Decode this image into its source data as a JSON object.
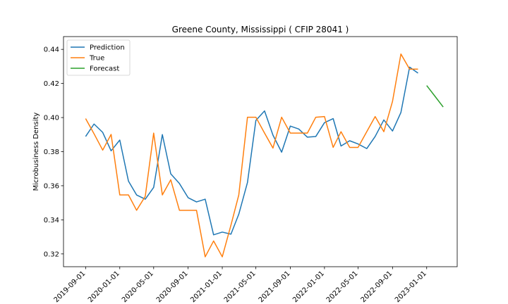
{
  "chart_data": {
    "type": "line",
    "title": "Greene County, Mississippi ( CFIP 28041 )",
    "xlabel": "",
    "ylabel": "Microbusiness Density",
    "ylim": [
      0.3125,
      0.4475
    ],
    "xlim": [
      "2019-06-14",
      "2023-04-20"
    ],
    "grid": false,
    "legend_position": "top-left",
    "yticks": [
      0.32,
      0.34,
      0.36,
      0.38,
      0.4,
      0.42,
      0.44
    ],
    "ytick_labels": [
      "0.32",
      "0.34",
      "0.36",
      "0.38",
      "0.40",
      "0.42",
      "0.44"
    ],
    "xticks": [
      "2019-09-01",
      "2020-01-01",
      "2020-05-01",
      "2020-09-01",
      "2021-01-01",
      "2021-05-01",
      "2021-09-01",
      "2022-01-01",
      "2022-05-01",
      "2022-09-01",
      "2023-01-01"
    ],
    "series": [
      {
        "name": "Prediction",
        "color": "#1f77b4",
        "points": [
          [
            "2019-09-01",
            0.3889
          ],
          [
            "2019-10-01",
            0.3962
          ],
          [
            "2019-11-01",
            0.3913
          ],
          [
            "2019-12-01",
            0.3805
          ],
          [
            "2020-01-01",
            0.3868
          ],
          [
            "2020-02-01",
            0.3627
          ],
          [
            "2020-03-01",
            0.3546
          ],
          [
            "2020-04-01",
            0.3521
          ],
          [
            "2020-05-01",
            0.359
          ],
          [
            "2020-06-01",
            0.39
          ],
          [
            "2020-07-01",
            0.367
          ],
          [
            "2020-08-01",
            0.3613
          ],
          [
            "2020-09-01",
            0.353
          ],
          [
            "2020-10-01",
            0.3505
          ],
          [
            "2020-11-01",
            0.3521
          ],
          [
            "2020-12-01",
            0.3312
          ],
          [
            "2021-01-01",
            0.3328
          ],
          [
            "2021-02-01",
            0.3316
          ],
          [
            "2021-03-01",
            0.3433
          ],
          [
            "2021-04-01",
            0.3619
          ],
          [
            "2021-05-01",
            0.3983
          ],
          [
            "2021-06-01",
            0.4039
          ],
          [
            "2021-07-01",
            0.3897
          ],
          [
            "2021-08-01",
            0.3797
          ],
          [
            "2021-09-01",
            0.395
          ],
          [
            "2021-10-01",
            0.3933
          ],
          [
            "2021-11-01",
            0.3885
          ],
          [
            "2021-12-01",
            0.3889
          ],
          [
            "2022-01-01",
            0.397
          ],
          [
            "2022-02-01",
            0.3994
          ],
          [
            "2022-03-01",
            0.3833
          ],
          [
            "2022-04-01",
            0.3864
          ],
          [
            "2022-05-01",
            0.3845
          ],
          [
            "2022-06-01",
            0.3818
          ],
          [
            "2022-07-01",
            0.3889
          ],
          [
            "2022-08-01",
            0.3986
          ],
          [
            "2022-09-01",
            0.3921
          ],
          [
            "2022-10-01",
            0.403
          ],
          [
            "2022-11-01",
            0.4296
          ],
          [
            "2022-12-01",
            0.4261
          ]
        ]
      },
      {
        "name": "True",
        "color": "#ff7f0e",
        "points": [
          [
            "2019-09-01",
            0.3994
          ],
          [
            "2019-10-01",
            0.3905
          ],
          [
            "2019-11-01",
            0.3809
          ],
          [
            "2019-12-01",
            0.3901
          ],
          [
            "2020-01-01",
            0.3546
          ],
          [
            "2020-02-01",
            0.3546
          ],
          [
            "2020-03-01",
            0.3456
          ],
          [
            "2020-04-01",
            0.3538
          ],
          [
            "2020-05-01",
            0.3909
          ],
          [
            "2020-06-01",
            0.3546
          ],
          [
            "2020-07-01",
            0.3635
          ],
          [
            "2020-08-01",
            0.3456
          ],
          [
            "2020-09-01",
            0.3456
          ],
          [
            "2020-10-01",
            0.3456
          ],
          [
            "2020-11-01",
            0.3183
          ],
          [
            "2020-12-01",
            0.3276
          ],
          [
            "2021-01-01",
            0.3183
          ],
          [
            "2021-02-01",
            0.3369
          ],
          [
            "2021-03-01",
            0.3546
          ],
          [
            "2021-04-01",
            0.4002
          ],
          [
            "2021-05-01",
            0.4002
          ],
          [
            "2021-06-01",
            0.3909
          ],
          [
            "2021-07-01",
            0.3821
          ],
          [
            "2021-08-01",
            0.4002
          ],
          [
            "2021-09-01",
            0.3909
          ],
          [
            "2021-10-01",
            0.3909
          ],
          [
            "2021-11-01",
            0.3909
          ],
          [
            "2021-12-01",
            0.4002
          ],
          [
            "2022-01-01",
            0.4006
          ],
          [
            "2022-02-01",
            0.3825
          ],
          [
            "2022-03-01",
            0.3917
          ],
          [
            "2022-04-01",
            0.3825
          ],
          [
            "2022-05-01",
            0.3825
          ],
          [
            "2022-06-01",
            0.3917
          ],
          [
            "2022-07-01",
            0.4006
          ],
          [
            "2022-08-01",
            0.3917
          ],
          [
            "2022-09-01",
            0.4095
          ],
          [
            "2022-10-01",
            0.4373
          ],
          [
            "2022-11-01",
            0.4284
          ],
          [
            "2022-12-01",
            0.4284
          ]
        ]
      },
      {
        "name": "Forecast",
        "color": "#2ca02c",
        "points": [
          [
            "2023-01-01",
            0.4188
          ],
          [
            "2023-02-01",
            0.4122
          ],
          [
            "2023-03-01",
            0.4062
          ]
        ]
      }
    ]
  }
}
